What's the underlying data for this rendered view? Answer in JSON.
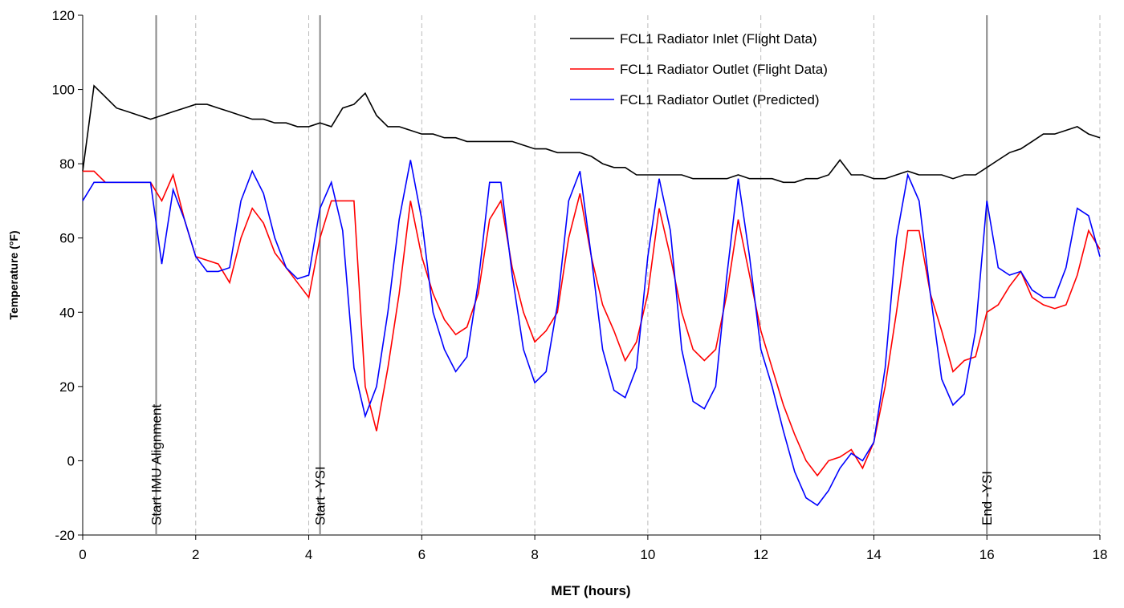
{
  "chart_data": {
    "type": "line",
    "x_label": "MET (hours)",
    "y_label": "Temperature (°F)",
    "xlim": [
      0,
      18
    ],
    "xticks": [
      0,
      2,
      4,
      6,
      8,
      10,
      12,
      14,
      16,
      18
    ],
    "ylim": [
      -20,
      120
    ],
    "yticks": [
      -20,
      0,
      20,
      40,
      60,
      80,
      100,
      120
    ],
    "grid": "x",
    "legend": "upper right",
    "x": [
      0,
      0.2,
      0.4,
      0.6,
      0.8,
      1,
      1.2,
      1.4,
      1.6,
      1.8,
      2,
      2.2,
      2.4,
      2.6,
      2.8,
      3,
      3.2,
      3.4,
      3.6,
      3.8,
      4,
      4.2,
      4.4,
      4.6,
      4.8,
      5,
      5.2,
      5.4,
      5.6,
      5.8,
      6,
      6.2,
      6.4,
      6.6,
      6.8,
      7,
      7.2,
      7.4,
      7.6,
      7.8,
      8,
      8.2,
      8.4,
      8.6,
      8.8,
      9,
      9.2,
      9.4,
      9.6,
      9.8,
      10,
      10.2,
      10.4,
      10.6,
      10.8,
      11,
      11.2,
      11.4,
      11.6,
      11.8,
      12,
      12.2,
      12.4,
      12.6,
      12.8,
      13,
      13.2,
      13.4,
      13.6,
      13.8,
      14,
      14.2,
      14.4,
      14.6,
      14.8,
      15,
      15.2,
      15.4,
      15.6,
      15.8,
      16,
      16.2,
      16.4,
      16.6,
      16.8,
      17,
      17.2,
      17.4,
      17.6,
      17.8,
      18
    ],
    "series": [
      {
        "name": "FCL1 Radiator Inlet (Flight Data)",
        "color": "#000000",
        "values": [
          78,
          101,
          98,
          95,
          94,
          93,
          92,
          93,
          94,
          95,
          96,
          96,
          95,
          94,
          93,
          92,
          92,
          91,
          91,
          90,
          90,
          91,
          90,
          95,
          96,
          99,
          93,
          90,
          90,
          89,
          88,
          88,
          87,
          87,
          86,
          86,
          86,
          86,
          86,
          85,
          84,
          84,
          83,
          83,
          83,
          82,
          80,
          79,
          79,
          77,
          77,
          77,
          77,
          77,
          76,
          76,
          76,
          76,
          77,
          76,
          76,
          76,
          75,
          75,
          76,
          76,
          77,
          81,
          77,
          77,
          76,
          76,
          77,
          78,
          77,
          77,
          77,
          76,
          77,
          77,
          79,
          81,
          83,
          84,
          86,
          88,
          88,
          89,
          90,
          88,
          87
        ]
      },
      {
        "name": "FCL1 Radiator Outlet (Flight Data)",
        "color": "#ff0000",
        "values": [
          78,
          78,
          75,
          75,
          75,
          75,
          75,
          70,
          77,
          65,
          55,
          54,
          53,
          48,
          60,
          68,
          64,
          56,
          52,
          48,
          44,
          60,
          70,
          70,
          70,
          20,
          8,
          25,
          45,
          70,
          55,
          45,
          38,
          34,
          36,
          45,
          65,
          70,
          52,
          40,
          32,
          35,
          40,
          60,
          72,
          55,
          42,
          35,
          27,
          32,
          45,
          68,
          55,
          40,
          30,
          27,
          30,
          45,
          65,
          50,
          35,
          25,
          15,
          7,
          0,
          -4,
          0,
          1,
          3,
          -2,
          5,
          20,
          40,
          62,
          62,
          45,
          35,
          24,
          27,
          28,
          40,
          42,
          47,
          51,
          44,
          42,
          41,
          42,
          50,
          62,
          57
        ]
      },
      {
        "name": "FCL1 Radiator Outlet (Predicted)",
        "color": "#0000ff",
        "values": [
          70,
          75,
          75,
          75,
          75,
          75,
          75,
          53,
          73,
          65,
          55,
          51,
          51,
          52,
          70,
          78,
          72,
          60,
          52,
          49,
          50,
          68,
          75,
          62,
          25,
          12,
          20,
          40,
          65,
          81,
          65,
          40,
          30,
          24,
          28,
          48,
          75,
          75,
          50,
          30,
          21,
          24,
          42,
          70,
          78,
          55,
          30,
          19,
          17,
          25,
          55,
          76,
          62,
          30,
          16,
          14,
          20,
          50,
          76,
          55,
          30,
          20,
          8,
          -3,
          -10,
          -12,
          -8,
          -2,
          2,
          0,
          5,
          25,
          60,
          77,
          70,
          45,
          22,
          15,
          18,
          35,
          70,
          52,
          50,
          51,
          46,
          44,
          44,
          52,
          68,
          66,
          55
        ]
      }
    ],
    "annotations": [
      {
        "x": 1.3,
        "label": "Start IMU Alignment"
      },
      {
        "x": 4.2,
        "label": "Start -YSI"
      },
      {
        "x": 16,
        "label": "End -YSI"
      }
    ]
  }
}
